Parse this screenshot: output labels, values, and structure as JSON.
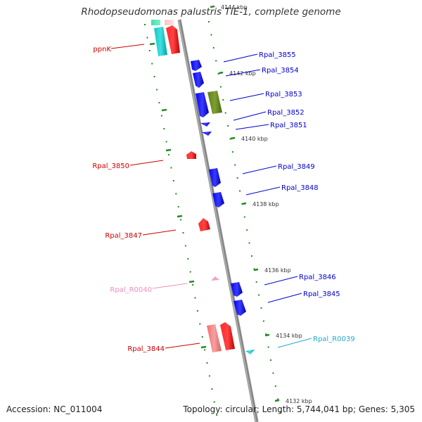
{
  "title": "Rhodopseudomonas palustris TIE-1, complete genome",
  "footer": {
    "accession": "Accession: NC_011004",
    "summary": "Topology: circular; Length: 5,744,041 bp; Genes: 5,305"
  },
  "colors": {
    "cds_forward": "#0000ee",
    "cds_reverse": "#ee0000",
    "trna_forward": "#22bbdd",
    "trna_reverse": "#f4a0c8",
    "other_feature": "#6b8e23",
    "backbone": "#888888",
    "ticks": "#228b22"
  },
  "ticks": [
    {
      "label": "4144 kbp"
    },
    {
      "label": "4142 kbp"
    },
    {
      "label": "4140 kbp"
    },
    {
      "label": "4138 kbp"
    },
    {
      "label": "4136 kbp"
    },
    {
      "label": "4134 kbp"
    },
    {
      "label": "4132 kbp"
    }
  ],
  "genes_forward": [
    {
      "label": "Rpal_3855"
    },
    {
      "label": "Rpal_3854"
    },
    {
      "label": "Rpal_3853"
    },
    {
      "label": "Rpal_3852"
    },
    {
      "label": "Rpal_3851"
    },
    {
      "label": "Rpal_3849"
    },
    {
      "label": "Rpal_3848"
    },
    {
      "label": "Rpal_3846"
    },
    {
      "label": "Rpal_3845"
    },
    {
      "label": "Rpal_R0039"
    }
  ],
  "genes_reverse": [
    {
      "label": "ppnK"
    },
    {
      "label": "Rpal_3850"
    },
    {
      "label": "Rpal_3847"
    },
    {
      "label": "Rpal_R0040"
    },
    {
      "label": "Rpal_3844"
    }
  ]
}
